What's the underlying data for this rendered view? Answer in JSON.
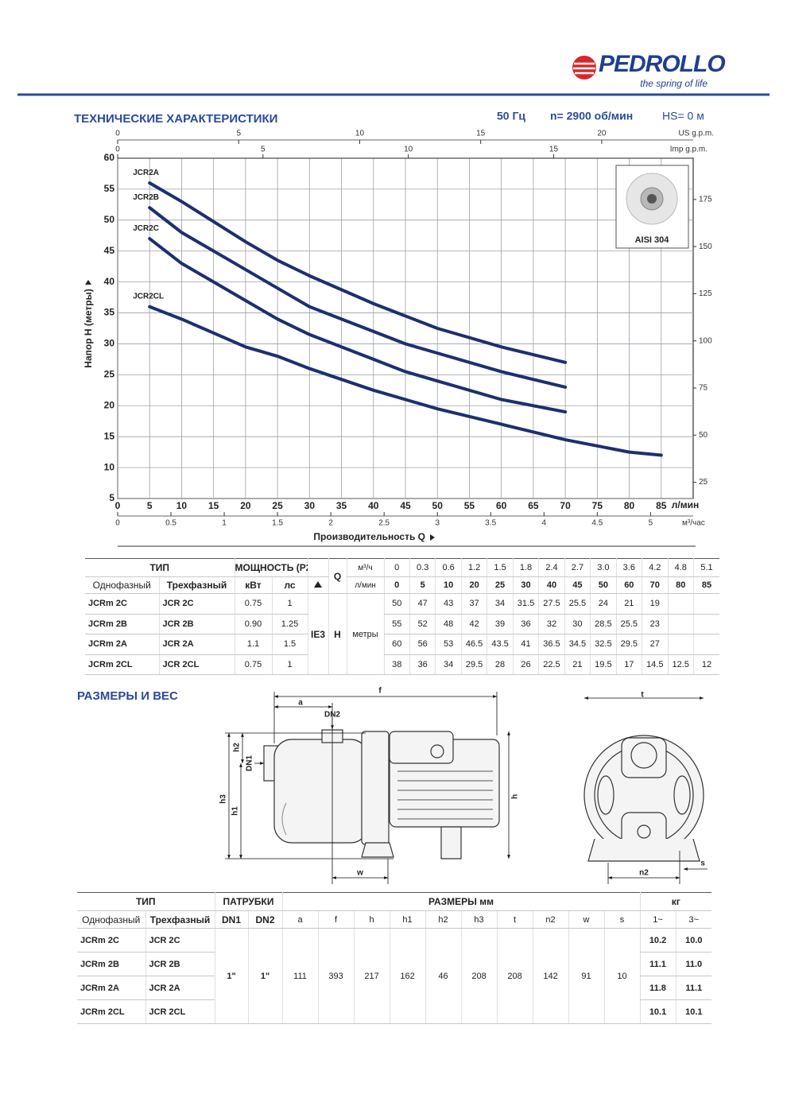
{
  "header": {
    "brand": "PEDROLLO",
    "tagline": "the spring of life"
  },
  "chart_data": {
    "type": "line",
    "title": "ТЕХНИЧЕСКИЕ ХАРАКТЕРИСТИКИ",
    "frequency": "50 Гц",
    "speed": "n= 2900 об/мин",
    "suction": "HS= 0 м",
    "x_label": "Производительность Q",
    "x_unit": "л/мин",
    "y_label": "Напор H (метры)",
    "inset_label": "AISI 304",
    "x": [
      5,
      10,
      20,
      25,
      30,
      40,
      45,
      50,
      60,
      70,
      80,
      85
    ],
    "xlim": [
      0,
      90
    ],
    "xticks": [
      0,
      5,
      10,
      15,
      20,
      25,
      30,
      35,
      40,
      45,
      50,
      55,
      60,
      65,
      70,
      75,
      80,
      85
    ],
    "ylim": [
      5,
      60
    ],
    "yticks": [
      5,
      10,
      15,
      20,
      25,
      30,
      35,
      40,
      45,
      50,
      55,
      60
    ],
    "grid": true,
    "series": [
      {
        "name": "JCR2A",
        "color": "#1d2f6f",
        "values": [
          56,
          53,
          46.5,
          43.5,
          41,
          36.5,
          34.5,
          32.5,
          29.5,
          27,
          null,
          null
        ]
      },
      {
        "name": "JCR2B",
        "color": "#1d2f6f",
        "values": [
          52,
          48,
          42,
          39,
          36,
          32,
          30,
          28.5,
          25.5,
          23,
          null,
          null
        ]
      },
      {
        "name": "JCR2C",
        "color": "#1d2f6f",
        "values": [
          47,
          43,
          37,
          34,
          31.5,
          27.5,
          25.5,
          24,
          21,
          19,
          null,
          null
        ]
      },
      {
        "name": "JCR2CL",
        "color": "#1d2f6f",
        "values": [
          36,
          34,
          29.5,
          28,
          26,
          22.5,
          21,
          19.5,
          17,
          14.5,
          12.5,
          12
        ]
      }
    ],
    "secondary_axes": [
      {
        "label": "US g.p.m.",
        "position": "top",
        "lim": [
          0,
          23.78
        ],
        "ticks": [
          0,
          5,
          10,
          15,
          20
        ]
      },
      {
        "label": "Imp g.p.m.",
        "position": "top-inner",
        "lim": [
          0,
          19.8
        ],
        "ticks": [
          0,
          5,
          10,
          15
        ]
      },
      {
        "label": "м³/час",
        "position": "bottom",
        "lim": [
          0,
          5.4
        ],
        "ticks": [
          0,
          0.5,
          1,
          1.5,
          2,
          2.5,
          3,
          3.5,
          4,
          4.5,
          5
        ]
      },
      {
        "position": "right",
        "lim": [
          16.4,
          196.85
        ],
        "ticks": [
          25,
          50,
          75,
          100,
          125,
          150,
          175
        ]
      }
    ]
  },
  "performance_table": {
    "headers": {
      "type": "ТИП",
      "power": "МОЩНОСТЬ (P2)",
      "flow": "Q",
      "single_phase": "Однофазный",
      "three_phase": "Трехфазный",
      "kw": "кВт",
      "hp": "лс",
      "efficiency": "IE3",
      "head": "H",
      "head_unit": "метры",
      "flow_unit_m3h": "м³/ч",
      "flow_unit_lmin": "л/мин"
    },
    "flow_m3h": [
      "0",
      "0.3",
      "0.6",
      "1.2",
      "1.5",
      "1.8",
      "2.4",
      "2.7",
      "3.0",
      "3.6",
      "4.2",
      "4.8",
      "5.1"
    ],
    "flow_lmin": [
      "0",
      "5",
      "10",
      "20",
      "25",
      "30",
      "40",
      "45",
      "50",
      "60",
      "70",
      "80",
      "85"
    ],
    "rows": [
      {
        "single": "JCRm 2C",
        "three": "JCR 2C",
        "kw": "0.75",
        "hp": "1",
        "head": [
          50,
          47,
          43,
          37,
          34,
          31.5,
          27.5,
          25.5,
          24,
          21,
          19,
          null,
          null
        ]
      },
      {
        "single": "JCRm 2B",
        "three": "JCR 2B",
        "kw": "0.90",
        "hp": "1.25",
        "head": [
          55,
          52,
          48,
          42,
          39,
          36,
          32,
          30,
          28.5,
          25.5,
          23,
          null,
          null
        ]
      },
      {
        "single": "JCRm 2A",
        "three": "JCR 2A",
        "kw": "1.1",
        "hp": "1.5",
        "head": [
          60,
          56,
          53,
          46.5,
          43.5,
          41,
          36.5,
          34.5,
          32.5,
          29.5,
          27,
          null,
          null
        ]
      },
      {
        "single": "JCRm 2CL",
        "three": "JCR 2CL",
        "kw": "0.75",
        "hp": "1",
        "head": [
          38,
          36,
          34,
          29.5,
          28,
          26,
          22.5,
          21,
          19.5,
          17,
          14.5,
          12.5,
          12
        ]
      }
    ]
  },
  "dimensions": {
    "title": "РАЗМЕРЫ И ВЕС",
    "drawing_labels": {
      "a": "a",
      "f": "f",
      "dn2": "DN2",
      "dn1": "DN1",
      "h2": "h2",
      "h3": "h3",
      "h1": "h1",
      "h": "h",
      "w": "w",
      "t": "t",
      "n2": "n2",
      "s": "s"
    }
  },
  "dimension_table": {
    "headers": {
      "type": "ТИП",
      "ports": "ПАТРУБКИ",
      "sizes": "РАЗМЕРЫ мм",
      "weight": "кг",
      "single_phase": "Однофазный",
      "three_phase": "Трехфазный",
      "dn1": "DN1",
      "dn2": "DN2",
      "w1": "1~",
      "w3": "3~"
    },
    "columns": [
      "a",
      "f",
      "h",
      "h1",
      "h2",
      "h3",
      "t",
      "n2",
      "w",
      "s"
    ],
    "dn1": "1\"",
    "dn2": "1\"",
    "sizes": [
      "111",
      "393",
      "217",
      "162",
      "46",
      "208",
      "208",
      "142",
      "91",
      "10"
    ],
    "rows": [
      {
        "single": "JCRm 2C",
        "three": "JCR 2C",
        "w1": "10.2",
        "w3": "10.0"
      },
      {
        "single": "JCRm 2B",
        "three": "JCR 2B",
        "w1": "11.1",
        "w3": "11.0"
      },
      {
        "single": "JCRm 2A",
        "three": "JCR 2A",
        "w1": "11.8",
        "w3": "11.1"
      },
      {
        "single": "JCRm 2CL",
        "three": "JCR 2CL",
        "w1": "10.1",
        "w3": "10.1"
      }
    ]
  }
}
